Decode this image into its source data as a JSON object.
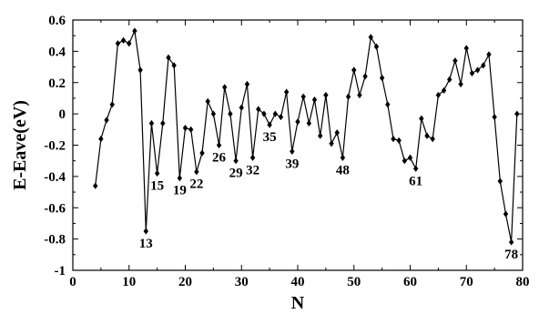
{
  "chart_data": {
    "type": "line",
    "xlabel": "N",
    "ylabel": "E-Eave(eV)",
    "xlim": [
      0,
      80
    ],
    "ylim": [
      -1,
      0.6
    ],
    "xticks": [
      0,
      10,
      20,
      30,
      40,
      50,
      60,
      70,
      80
    ],
    "yticks": [
      -1,
      -0.8,
      -0.6,
      -0.4,
      -0.2,
      0,
      0.2,
      0.4,
      0.6
    ],
    "ytick_labels": [
      "-1",
      "-0.8",
      "-0.6",
      "-0.4",
      "-0.2",
      "0",
      "0.2",
      "0.4",
      "0.6"
    ],
    "grid": false,
    "marker": "diamond",
    "series": [
      {
        "x": [
          4,
          5,
          6,
          7,
          8,
          9,
          10,
          11,
          12,
          13,
          14,
          15,
          16,
          17,
          18,
          19,
          20,
          21,
          22,
          23,
          24,
          25,
          26,
          27,
          28,
          29,
          30,
          31,
          32,
          33,
          34,
          35,
          36,
          37,
          38,
          39,
          40,
          41,
          42,
          43,
          44,
          45,
          46,
          47,
          48,
          49,
          50,
          51,
          52,
          53,
          54,
          55,
          56,
          57,
          58,
          59,
          60,
          61,
          62,
          63,
          64,
          65,
          66,
          67,
          68,
          69,
          70,
          71,
          72,
          73,
          74,
          75,
          76,
          77,
          78,
          79
        ],
        "y": [
          -0.46,
          -0.16,
          -0.04,
          0.06,
          0.45,
          0.47,
          0.45,
          0.53,
          0.28,
          -0.75,
          -0.06,
          -0.38,
          -0.06,
          0.36,
          0.31,
          -0.41,
          -0.09,
          -0.1,
          -0.37,
          -0.25,
          0.08,
          0.0,
          -0.2,
          0.17,
          0.0,
          -0.3,
          0.04,
          0.19,
          -0.28,
          0.03,
          0.0,
          -0.07,
          0.0,
          -0.02,
          0.14,
          -0.24,
          -0.05,
          0.11,
          -0.06,
          0.09,
          -0.14,
          0.12,
          -0.19,
          -0.12,
          -0.28,
          0.11,
          0.28,
          0.12,
          0.24,
          0.49,
          0.43,
          0.23,
          0.06,
          -0.16,
          -0.17,
          -0.3,
          -0.28,
          -0.35,
          -0.03,
          -0.14,
          -0.16,
          0.12,
          0.15,
          0.22,
          0.34,
          0.19,
          0.42,
          0.26,
          0.28,
          0.31,
          0.38,
          -0.02,
          -0.43,
          -0.64,
          -0.82,
          0.0
        ]
      }
    ],
    "annotations": [
      {
        "text": "13",
        "x": 13,
        "y": -0.75
      },
      {
        "text": "15",
        "x": 15,
        "y": -0.38
      },
      {
        "text": "19",
        "x": 19,
        "y": -0.41
      },
      {
        "text": "22",
        "x": 22,
        "y": -0.37
      },
      {
        "text": "26",
        "x": 26,
        "y": -0.2
      },
      {
        "text": "29",
        "x": 29,
        "y": -0.3
      },
      {
        "text": "32",
        "x": 32,
        "y": -0.28
      },
      {
        "text": "35",
        "x": 35,
        "y": -0.07
      },
      {
        "text": "39",
        "x": 39,
        "y": -0.24
      },
      {
        "text": "48",
        "x": 48,
        "y": -0.28
      },
      {
        "text": "61",
        "x": 61,
        "y": -0.35
      },
      {
        "text": "78",
        "x": 78,
        "y": -0.82
      }
    ]
  }
}
